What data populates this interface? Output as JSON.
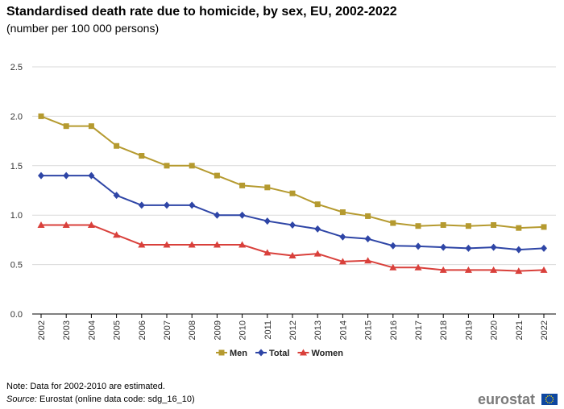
{
  "title": "Standardised death rate due to homicide, by sex, EU, 2002-2022",
  "subtitle": "(number per 100 000 persons)",
  "footer": {
    "note": "Note: Data for 2002-2010 are estimated.",
    "source_label": "Source:",
    "source_text": " Eurostat (online data code: sdg_16_10)",
    "logo_text": "eurostat"
  },
  "colors": {
    "men": "#b59a2f",
    "total": "#2e45a6",
    "women": "#d9403b",
    "grid": "#d9d9d9",
    "eu_flag": "#0e47a1",
    "eu_stars": "#ffde00"
  },
  "chart_data": {
    "type": "line",
    "title": "Standardised death rate due to homicide, by sex, EU, 2002-2022",
    "subtitle": "(number per 100 000 persons)",
    "xlabel": "",
    "ylabel": "",
    "ylim": [
      0,
      2.5
    ],
    "yticks": [
      "0.0",
      "0.5",
      "1.0",
      "1.5",
      "2.0",
      "2.5"
    ],
    "grid": true,
    "legend_position": "bottom",
    "categories": [
      "2002",
      "2003",
      "2004",
      "2005",
      "2006",
      "2007",
      "2008",
      "2009",
      "2010",
      "2011",
      "2012",
      "2013",
      "2014",
      "2015",
      "2016",
      "2017",
      "2018",
      "2019",
      "2020",
      "2021",
      "2022"
    ],
    "series": [
      {
        "name": "Men",
        "marker": "square",
        "values": [
          2.0,
          1.9,
          1.9,
          1.7,
          1.6,
          1.5,
          1.5,
          1.4,
          1.3,
          1.28,
          1.22,
          1.11,
          1.03,
          0.99,
          0.92,
          0.89,
          0.9,
          0.89,
          0.9,
          0.87,
          0.88
        ]
      },
      {
        "name": "Total",
        "marker": "diamond",
        "values": [
          1.4,
          1.4,
          1.4,
          1.2,
          1.1,
          1.1,
          1.1,
          1.0,
          1.0,
          0.94,
          0.9,
          0.86,
          0.78,
          0.76,
          0.69,
          0.685,
          0.675,
          0.665,
          0.675,
          0.65,
          0.665
        ]
      },
      {
        "name": "Women",
        "marker": "triangle",
        "values": [
          0.9,
          0.9,
          0.9,
          0.8,
          0.7,
          0.7,
          0.7,
          0.7,
          0.7,
          0.62,
          0.59,
          0.61,
          0.53,
          0.54,
          0.47,
          0.47,
          0.445,
          0.445,
          0.445,
          0.435,
          0.445
        ]
      }
    ]
  }
}
